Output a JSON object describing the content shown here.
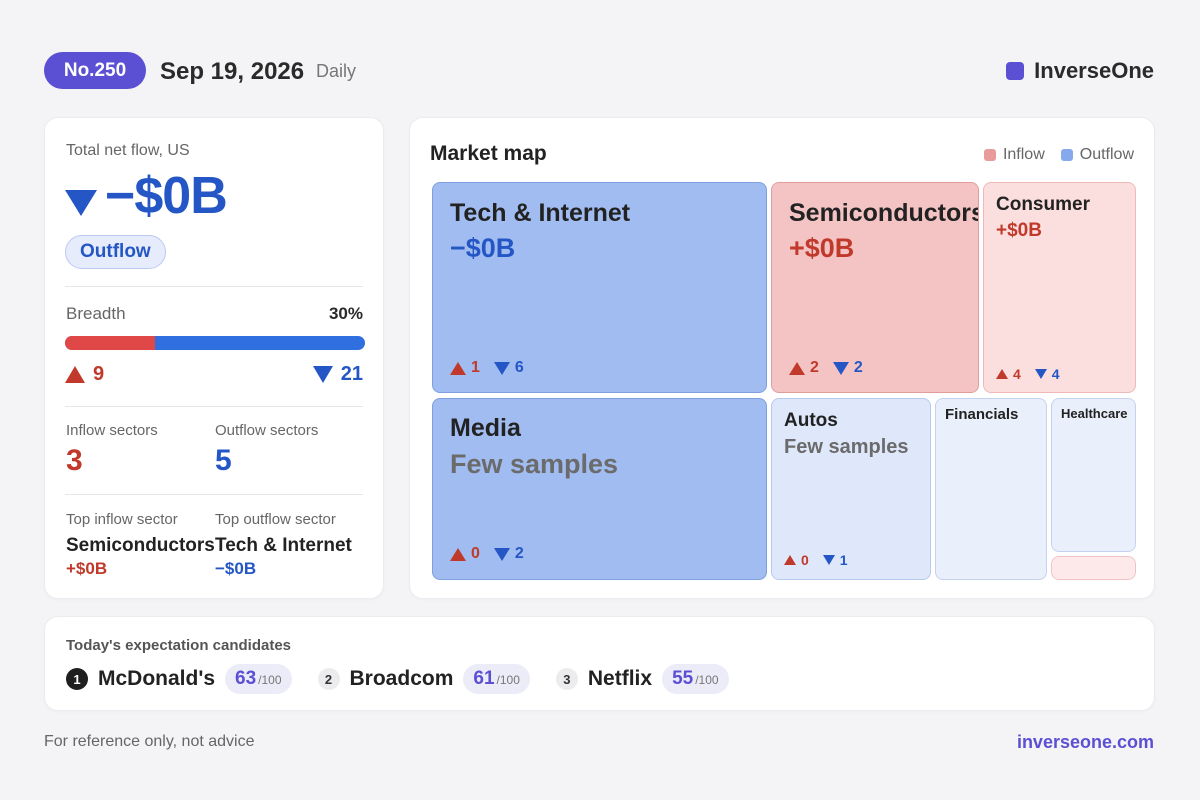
{
  "header": {
    "issue_no": "No.250",
    "date": "Sep 19, 2026",
    "frequency": "Daily",
    "brand": "InverseOne",
    "brand_color": "#5b4fd3"
  },
  "summary": {
    "title": "Total net flow, US",
    "net_flow": "−$0B",
    "direction": "Outflow",
    "breadth_label": "Breadth",
    "breadth_pct_text": "30%",
    "breadth_fraction": 0.3,
    "up_count": "9",
    "down_count": "21",
    "inflow_sectors_label": "Inflow sectors",
    "inflow_sectors": "3",
    "outflow_sectors_label": "Outflow sectors",
    "outflow_sectors": "5",
    "top_inflow_label": "Top inflow sector",
    "top_inflow_name": "Semiconductors",
    "top_inflow_value": "+$0B",
    "top_outflow_label": "Top outflow sector",
    "top_outflow_name": "Tech & Internet",
    "top_outflow_value": "−$0B"
  },
  "market_map": {
    "title": "Market map",
    "legend_inflow": "Inflow",
    "legend_outflow": "Outflow",
    "inflow_color": "#e89b9b",
    "outflow_color": "#86a8ec",
    "tiles": [
      {
        "name": "Tech & Internet",
        "value": "−$0B",
        "up": "1",
        "down": "6"
      },
      {
        "name": "Semiconductors",
        "value": "+$0B",
        "up": "2",
        "down": "2"
      },
      {
        "name": "Consumer",
        "value": "+$0B",
        "up": "4",
        "down": "4"
      },
      {
        "name": "Media",
        "value": "Few samples",
        "up": "0",
        "down": "2"
      },
      {
        "name": "Autos",
        "value": "Few samples",
        "up": "0",
        "down": "1"
      },
      {
        "name": "Financials"
      },
      {
        "name": "Healthcare"
      }
    ]
  },
  "candidates": {
    "title": "Today's expectation candidates",
    "items": [
      {
        "rank": "1",
        "name": "McDonald's",
        "score": "63",
        "max": "/100"
      },
      {
        "rank": "2",
        "name": "Broadcom",
        "score": "61",
        "max": "/100"
      },
      {
        "rank": "3",
        "name": "Netflix",
        "score": "55",
        "max": "/100"
      }
    ]
  },
  "footer": {
    "disclaimer": "For reference only, not advice",
    "link": "inverseone.com"
  }
}
